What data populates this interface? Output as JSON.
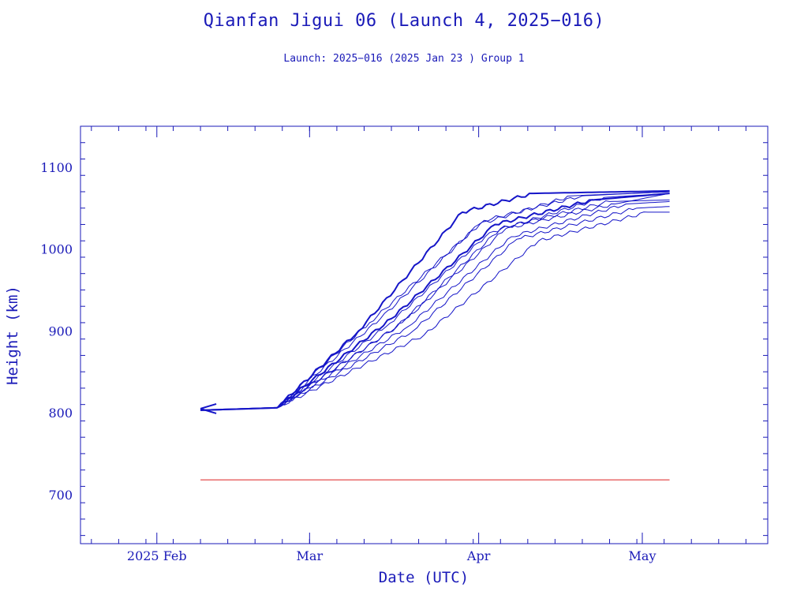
{
  "chart_data": {
    "type": "line",
    "title": "Qianfan Jigui 06 (Launch 4, 2025−016)",
    "subtitle": "Launch: 2025−016  (2025 Jan 23 )  Group 1",
    "xlabel": "Date (UTC)",
    "ylabel": "Height (km)",
    "xlim": [
      "2025-01-18",
      "2025-05-24"
    ],
    "ylim": [
      640,
      1150
    ],
    "x_tick_labels": [
      {
        "date": "2025-02-01",
        "label": "2025 Feb"
      },
      {
        "date": "2025-03-01",
        "label": "Mar"
      },
      {
        "date": "2025-04-01",
        "label": "Apr"
      },
      {
        "date": "2025-05-01",
        "label": "May"
      }
    ],
    "y_tick_labels": [
      700,
      800,
      900,
      1000,
      1100
    ],
    "grid": false,
    "colors": {
      "axis": "#1a1ab8",
      "series": "#1515c8",
      "reference": "#dd2222"
    },
    "series": [
      {
        "x": [
          "2025-02-09",
          "2025-02-23",
          "2025-03-10",
          "2025-03-29",
          "2025-04-11",
          "2025-05-06"
        ],
        "y": [
          803,
          806,
          900,
          1045,
          1068,
          1071
        ]
      },
      {
        "x": [
          "2025-02-09",
          "2025-02-23",
          "2025-03-14",
          "2025-04-01",
          "2025-04-18",
          "2025-05-06"
        ],
        "y": [
          803,
          806,
          915,
          1030,
          1065,
          1070
        ]
      },
      {
        "x": [
          "2025-02-09",
          "2025-02-23",
          "2025-03-15",
          "2025-04-03",
          "2025-04-24",
          "2025-05-06"
        ],
        "y": [
          803,
          806,
          905,
          1020,
          1063,
          1068
        ]
      },
      {
        "x": [
          "2025-02-09",
          "2025-02-23",
          "2025-03-16",
          "2025-04-04",
          "2025-04-22",
          "2025-05-06"
        ],
        "y": [
          803,
          806,
          915,
          1030,
          1060,
          1068
        ]
      },
      {
        "x": [
          "2025-02-09",
          "2025-02-23",
          "2025-03-17",
          "2025-04-05",
          "2025-04-25",
          "2025-05-06"
        ],
        "y": [
          803,
          806,
          905,
          1025,
          1058,
          1060
        ]
      },
      {
        "x": [
          "2025-02-09",
          "2025-02-23",
          "2025-03-19",
          "2025-04-07",
          "2025-04-28",
          "2025-05-06"
        ],
        "y": [
          803,
          806,
          905,
          1015,
          1055,
          1058
        ]
      },
      {
        "x": [
          "2025-02-09",
          "2025-02-23",
          "2025-03-20",
          "2025-04-08",
          "2025-04-30",
          "2025-05-06"
        ],
        "y": [
          803,
          806,
          900,
          1012,
          1050,
          1052
        ]
      },
      {
        "x": [
          "2025-02-09",
          "2025-02-23",
          "2025-03-22",
          "2025-04-12",
          "2025-05-02",
          "2025-05-06"
        ],
        "y": [
          803,
          806,
          895,
          1010,
          1045,
          1045
        ]
      },
      {
        "x": [
          "2025-02-09",
          "2025-02-23",
          "2025-03-12",
          "2025-04-02",
          "2025-04-20",
          "2025-05-06"
        ],
        "y": [
          803,
          806,
          910,
          1035,
          1065,
          1070
        ]
      },
      {
        "x": [
          "2025-02-09",
          "2025-02-23",
          "2025-03-18",
          "2025-04-06",
          "2025-04-26",
          "2025-05-06"
        ],
        "y": [
          803,
          806,
          910,
          1025,
          1055,
          1068
        ]
      }
    ],
    "reference_line": {
      "x": [
        "2025-02-09",
        "2025-05-06"
      ],
      "y": [
        718,
        718
      ]
    }
  }
}
